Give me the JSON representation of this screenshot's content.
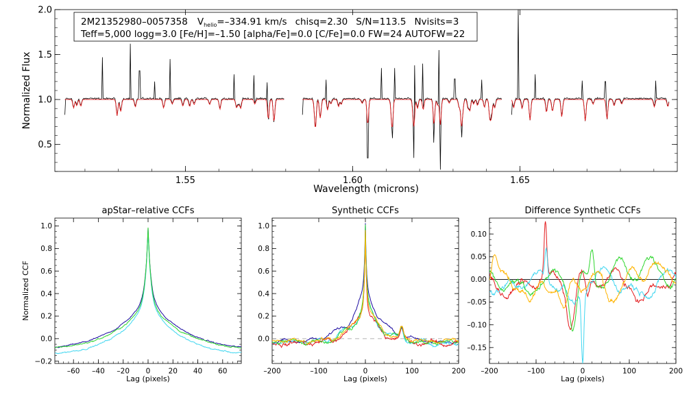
{
  "colors": {
    "black": "#000000",
    "red": "#e31a1c",
    "blue": "#1a0aa0",
    "cyan": "#3fd6f0",
    "green": "#2ed62e",
    "orange": "#ffb400",
    "grey": "#9a9a9a"
  },
  "header": {
    "line1": {
      "star": "2M21352980–0057358",
      "v_label": "V",
      "v_sub": "helio",
      "v_value": "=–334.91 km/s",
      "chisq": "chisq=2.30",
      "sn": "S/N=113.5",
      "nvisits": "Nvisits=3"
    },
    "line2": "Teff=5,000 logg=3.0 [Fe/H]=–1.50 [alpha/Fe]=0.0 [C/Fe]=0.0 FW=24 AUTOFW=22"
  },
  "chart_data": [
    {
      "id": "spectrum",
      "type": "line",
      "xlabel": "Wavelength (microns)",
      "ylabel": "Normalized Flux",
      "xlim": [
        1.511,
        1.697
      ],
      "ylim": [
        0.2,
        2.0
      ],
      "xticks": [
        {
          "v": 1.55,
          "label": "1.55"
        },
        {
          "v": 1.6,
          "label": "1.60"
        },
        {
          "v": 1.65,
          "label": "1.65"
        }
      ],
      "yticks": [
        {
          "v": 0.5,
          "label": "0.5"
        },
        {
          "v": 1.0,
          "label": "1.0"
        },
        {
          "v": 1.5,
          "label": "1.5"
        },
        {
          "v": 2.0,
          "label": "2.0"
        }
      ],
      "chips": [
        [
          1.514,
          1.5795
        ],
        [
          1.585,
          1.6445
        ],
        [
          1.6475,
          1.6945
        ]
      ],
      "emission_spikes": [
        [
          1.5252,
          1.47
        ],
        [
          1.5335,
          1.62
        ],
        [
          1.5363,
          1.32
        ],
        [
          1.5455,
          1.45
        ],
        [
          1.5408,
          1.2
        ],
        [
          1.5645,
          1.28
        ],
        [
          1.5705,
          1.27
        ],
        [
          1.5745,
          1.19
        ],
        [
          1.592,
          1.22
        ],
        [
          1.6085,
          1.35
        ],
        [
          1.6125,
          1.35
        ],
        [
          1.6185,
          1.38
        ],
        [
          1.621,
          1.4
        ],
        [
          1.6258,
          1.55
        ],
        [
          1.6305,
          1.23
        ],
        [
          1.6385,
          1.22
        ],
        [
          1.6495,
          2.02
        ],
        [
          1.6545,
          1.28
        ],
        [
          1.6685,
          1.21
        ],
        [
          1.6755,
          1.2
        ],
        [
          1.6905,
          1.21
        ]
      ],
      "absorption_spikes": [
        [
          1.5296,
          0.82
        ],
        [
          1.5748,
          0.78
        ],
        [
          1.5765,
          0.75
        ],
        [
          1.5889,
          0.72
        ],
        [
          1.6045,
          0.35
        ],
        [
          1.6118,
          0.57
        ],
        [
          1.6183,
          0.35
        ],
        [
          1.6243,
          0.52
        ],
        [
          1.6262,
          0.22
        ],
        [
          1.6325,
          0.58
        ],
        [
          1.6415,
          0.82
        ],
        [
          1.653,
          0.77
        ],
        [
          1.6695,
          0.76
        ],
        [
          1.676,
          0.78
        ]
      ],
      "series": [
        {
          "name": "observed",
          "color": "black"
        },
        {
          "name": "model",
          "color": "red"
        }
      ]
    },
    {
      "id": "apstar_ccf",
      "type": "line",
      "title": "apStar–relative CCFs",
      "xlabel": "Lag (pixels)",
      "ylabel": "Normalized CCF",
      "xlim": [
        -75,
        75
      ],
      "ylim": [
        -0.22,
        1.07
      ],
      "xticks": [
        {
          "v": -60,
          "label": "–60"
        },
        {
          "v": -40,
          "label": "–40"
        },
        {
          "v": -20,
          "label": "–20"
        },
        {
          "v": 0,
          "label": "0"
        },
        {
          "v": 20,
          "label": "20"
        },
        {
          "v": 40,
          "label": "40"
        },
        {
          "v": 60,
          "label": "60"
        }
      ],
      "yticks": [
        {
          "v": -0.2,
          "label": "−0.2"
        },
        {
          "v": 0.0,
          "label": "0.0"
        },
        {
          "v": 0.2,
          "label": "0.2"
        },
        {
          "v": 0.4,
          "label": "0.4"
        },
        {
          "v": 0.6,
          "label": "0.6"
        },
        {
          "v": 0.8,
          "label": "0.8"
        },
        {
          "v": 1.0,
          "label": "1.0"
        }
      ],
      "series": [
        {
          "name": "visit-blue",
          "color": "blue",
          "peak": 0.99,
          "wing": 0.36,
          "w": 30,
          "base": -0.11,
          "jitter": 0.01
        },
        {
          "name": "visit-cyan",
          "color": "cyan",
          "peak": 0.96,
          "wing": 0.33,
          "w": 26,
          "base": -0.15,
          "jitter": 0.012
        },
        {
          "name": "visit-green",
          "color": "green",
          "peak": 0.99,
          "wing": 0.34,
          "w": 27,
          "base": -0.1,
          "jitter": 0.012
        }
      ]
    },
    {
      "id": "synthetic_ccf",
      "type": "line",
      "title": "Synthetic CCFs",
      "xlabel": "Lag (pixels)",
      "ylabel": "",
      "xlim": [
        -200,
        200
      ],
      "ylim": [
        -0.22,
        1.07
      ],
      "xticks": [
        {
          "v": -200,
          "label": "–200"
        },
        {
          "v": -100,
          "label": "–100"
        },
        {
          "v": 0,
          "label": "0"
        },
        {
          "v": 100,
          "label": "100"
        },
        {
          "v": 200,
          "label": "200"
        }
      ],
      "yticks": [
        {
          "v": 0.0,
          "label": "0.0"
        },
        {
          "v": 0.2,
          "label": "0.2"
        },
        {
          "v": 0.4,
          "label": "0.4"
        },
        {
          "v": 0.6,
          "label": "0.6"
        },
        {
          "v": 0.8,
          "label": "0.8"
        },
        {
          "v": 1.0,
          "label": "1.0"
        }
      ],
      "zero_line": true,
      "series": [
        {
          "name": "combined-blue",
          "color": "blue",
          "peak": 1.0,
          "wing": 0.45,
          "w": 40,
          "base": -0.03,
          "jitter": 0.02
        },
        {
          "name": "visit-cyan",
          "color": "cyan",
          "peak": 1.0,
          "wing": 0.35,
          "w": 32,
          "base": -0.04,
          "jitter": 0.03
        },
        {
          "name": "visit-red",
          "color": "red",
          "peak": 1.0,
          "wing": 0.32,
          "w": 30,
          "base": -0.04,
          "jitter": 0.035
        },
        {
          "name": "visit-green",
          "color": "green",
          "peak": 0.98,
          "wing": 0.34,
          "w": 32,
          "base": -0.03,
          "jitter": 0.03
        },
        {
          "name": "visit-orange",
          "color": "orange",
          "peak": 0.98,
          "wing": 0.33,
          "w": 31,
          "base": -0.02,
          "jitter": 0.03
        }
      ]
    },
    {
      "id": "difference_ccf",
      "type": "line",
      "title": "Difference Synthetic CCFs",
      "xlabel": "Lag (pixels)",
      "ylabel": "",
      "xlim": [
        -200,
        200
      ],
      "ylim": [
        -0.185,
        0.135
      ],
      "xticks": [
        {
          "v": -200,
          "label": "–200"
        },
        {
          "v": -100,
          "label": "–100"
        },
        {
          "v": 0,
          "label": "0"
        },
        {
          "v": 100,
          "label": "100"
        },
        {
          "v": 200,
          "label": "200"
        }
      ],
      "yticks": [
        {
          "v": -0.15,
          "label": "–0.15"
        },
        {
          "v": -0.1,
          "label": "–0.10"
        },
        {
          "v": -0.05,
          "label": "–0.05"
        },
        {
          "v": 0.0,
          "label": "0.00"
        },
        {
          "v": 0.05,
          "label": "0.05"
        },
        {
          "v": 0.1,
          "label": "0.10"
        }
      ],
      "zero_line": true,
      "series": [
        {
          "name": "diff-red",
          "color": "red",
          "features": [
            [
              -80,
              0.12,
              4
            ],
            [
              -25,
              -0.1,
              12
            ],
            [
              10,
              -0.05,
              6
            ],
            [
              130,
              -0.06,
              20
            ],
            [
              -150,
              -0.04,
              20
            ]
          ]
        },
        {
          "name": "diff-cyan",
          "color": "cyan",
          "features": [
            [
              -78,
              0.07,
              4
            ],
            [
              0,
              -0.16,
              4
            ],
            [
              -20,
              -0.07,
              15
            ],
            [
              120,
              -0.04,
              20
            ],
            [
              -170,
              -0.03,
              25
            ]
          ]
        },
        {
          "name": "diff-green",
          "color": "green",
          "features": [
            [
              20,
              0.07,
              6
            ],
            [
              -20,
              -0.1,
              10
            ],
            [
              90,
              0.04,
              20
            ],
            [
              150,
              0.03,
              25
            ],
            [
              -120,
              -0.03,
              20
            ]
          ]
        },
        {
          "name": "diff-orange",
          "color": "orange",
          "features": [
            [
              -190,
              0.05,
              8
            ],
            [
              -40,
              -0.08,
              12
            ],
            [
              150,
              0.05,
              15
            ],
            [
              -110,
              -0.06,
              15
            ],
            [
              60,
              -0.03,
              20
            ]
          ]
        }
      ]
    }
  ]
}
